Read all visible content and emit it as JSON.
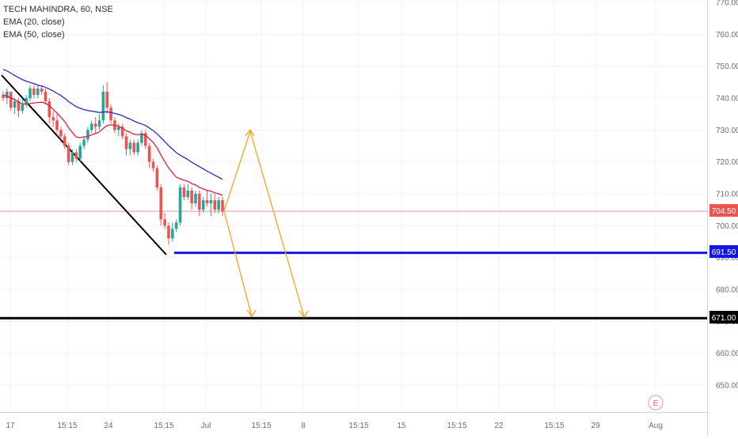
{
  "legend": {
    "symbol": "TECH MAHINDRA, 60, NSE",
    "ema20": "EMA (20, close)",
    "ema50": "EMA (50, close)"
  },
  "colors": {
    "up": "#26a69a",
    "down": "#ef5350",
    "ema20": "#e01e3c",
    "ema50": "#2d2bb8",
    "trendline": "#000000",
    "support_blue": "#1414e6",
    "support_black": "#000000",
    "projection": "#f7a21b",
    "last_price_line": "#f28fb0",
    "axis_text": "#6a6d78"
  },
  "price_axis": {
    "ticks": [
      "770.00",
      "760.00",
      "750.00",
      "740.00",
      "730.00",
      "720.00",
      "710.00",
      "700.00",
      "690.00",
      "680.00",
      "670.00",
      "660.00",
      "650.00"
    ],
    "last_price_label": "704.50",
    "level_blue_label": "691.50",
    "level_black_label": "671.00"
  },
  "time_axis": {
    "labels": [
      "17",
      "15:15",
      "24",
      "15:15",
      "Jul",
      "15:15",
      "8",
      "15:15",
      "15",
      "15:15",
      "22",
      "15:15",
      "29",
      "Aug"
    ]
  },
  "earnings_marker": "E",
  "chart_data": {
    "type": "candlestick",
    "symbol": "TECH MAHINDRA",
    "interval": "60",
    "exchange": "NSE",
    "ylim": [
      640,
      772
    ],
    "last_price": 704.5,
    "levels": [
      691.5,
      671.0
    ],
    "candles": [
      [
        741,
        742,
        739,
        740
      ],
      [
        740,
        743,
        738,
        742
      ],
      [
        742,
        742,
        736,
        737
      ],
      [
        737,
        740,
        735,
        739
      ],
      [
        739,
        740,
        734,
        736
      ],
      [
        736,
        740,
        735,
        738
      ],
      [
        738,
        741,
        737,
        740
      ],
      [
        740,
        744,
        739,
        743
      ],
      [
        743,
        744,
        740,
        741
      ],
      [
        741,
        744,
        740,
        743
      ],
      [
        743,
        744,
        741,
        742
      ],
      [
        742,
        743,
        738,
        739
      ],
      [
        739,
        740,
        732,
        734
      ],
      [
        734,
        736,
        731,
        733
      ],
      [
        733,
        735,
        729,
        730
      ],
      [
        730,
        731,
        726,
        728
      ],
      [
        728,
        729,
        724,
        725
      ],
      [
        725,
        726,
        719,
        720
      ],
      [
        720,
        724,
        719,
        723
      ],
      [
        723,
        724,
        720,
        721
      ],
      [
        721,
        726,
        720,
        725
      ],
      [
        725,
        728,
        724,
        727
      ],
      [
        727,
        731,
        726,
        730
      ],
      [
        730,
        733,
        729,
        732
      ],
      [
        732,
        734,
        729,
        731
      ],
      [
        731,
        735,
        730,
        733
      ],
      [
        733,
        744,
        732,
        742
      ],
      [
        742,
        745,
        735,
        737
      ],
      [
        737,
        738,
        732,
        733
      ],
      [
        733,
        734,
        729,
        730
      ],
      [
        730,
        732,
        728,
        731
      ],
      [
        731,
        732,
        727,
        728
      ],
      [
        728,
        729,
        722,
        724
      ],
      [
        724,
        727,
        722,
        726
      ],
      [
        726,
        727,
        722,
        723
      ],
      [
        723,
        727,
        722,
        726
      ],
      [
        726,
        730,
        725,
        729
      ],
      [
        729,
        730,
        724,
        725
      ],
      [
        725,
        726,
        718,
        720
      ],
      [
        720,
        721,
        717,
        718
      ],
      [
        718,
        719,
        711,
        712
      ],
      [
        712,
        713,
        700,
        702
      ],
      [
        702,
        704,
        699,
        700
      ],
      [
        700,
        701,
        694,
        696
      ],
      [
        696,
        701,
        695,
        699
      ],
      [
        699,
        702,
        698,
        701
      ],
      [
        701,
        713,
        700,
        712
      ],
      [
        712,
        713,
        708,
        709
      ],
      [
        709,
        713,
        708,
        711
      ],
      [
        711,
        712,
        705,
        707
      ],
      [
        707,
        711,
        706,
        710
      ],
      [
        710,
        711,
        703,
        705
      ],
      [
        705,
        709,
        704,
        708
      ],
      [
        708,
        711,
        706,
        707
      ],
      [
        707,
        710,
        703,
        708
      ],
      [
        708,
        710,
        704,
        705
      ],
      [
        705,
        709,
        704,
        708
      ],
      [
        708,
        709,
        703,
        704.5
      ]
    ],
    "ema20": [
      741,
      740.6,
      740.1,
      739.5,
      738.8,
      738.2,
      738.1,
      738.3,
      738.5,
      738.6,
      738.7,
      738.4,
      737.6,
      736.5,
      735.3,
      734.0,
      732.6,
      730.7,
      729.2,
      727.8,
      727.6,
      727.8,
      728.0,
      728.5,
      728.9,
      729.4,
      730.5,
      731.4,
      731.6,
      731.5,
      731.2,
      730.6,
      729.7,
      729.3,
      728.7,
      728.5,
      728.7,
      728.3,
      727.2,
      726.1,
      724.4,
      722.2,
      720.1,
      718.1,
      716.6,
      715.2,
      714.7,
      714.3,
      713.9,
      713.2,
      712.8,
      712.0,
      711.5,
      711.1,
      710.8,
      710.3,
      710.0,
      709.5
    ],
    "ema50": [
      749,
      748.5,
      747.8,
      747.1,
      746.4,
      745.8,
      745.3,
      744.9,
      744.5,
      744.1,
      743.8,
      743.4,
      742.8,
      742.2,
      741.5,
      740.8,
      739.9,
      738.9,
      738.1,
      737.3,
      736.8,
      736.4,
      736.1,
      735.9,
      735.7,
      735.5,
      735.6,
      735.7,
      735.5,
      735.2,
      734.9,
      734.5,
      733.9,
      733.4,
      732.8,
      732.3,
      731.9,
      731.4,
      730.6,
      729.8,
      728.8,
      727.6,
      726.4,
      725.1,
      724.0,
      722.9,
      722.1,
      721.4,
      720.7,
      719.9,
      719.2,
      718.5,
      717.8,
      717.1,
      716.5,
      715.8,
      715.2,
      714.5
    ]
  }
}
